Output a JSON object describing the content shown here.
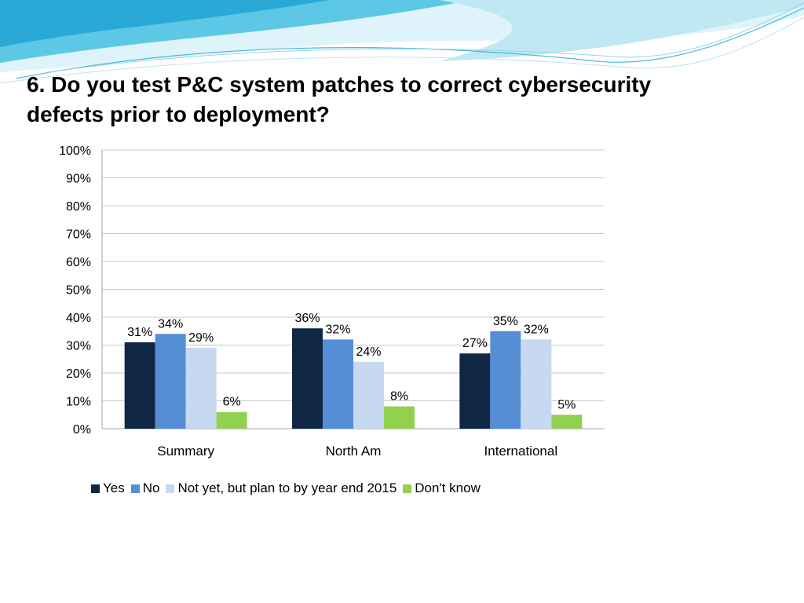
{
  "slide": {
    "title": "6. Do you test P&C system patches to correct cybersecurity defects prior to deployment?"
  },
  "theme": {
    "wave_colors": [
      "#bfe8f3",
      "#5cc8e6",
      "#2aa9d6",
      "#dff4fa"
    ]
  },
  "chart_data": {
    "type": "bar",
    "categories": [
      "Summary",
      "North Am",
      "International"
    ],
    "series": [
      {
        "name": "Yes",
        "color": "#0f2744",
        "values": [
          31,
          36,
          27
        ],
        "labels": [
          "31%",
          "36%",
          "27%"
        ]
      },
      {
        "name": "No",
        "color": "#558ed5",
        "values": [
          34,
          32,
          35
        ],
        "labels": [
          "34%",
          "32%",
          "35%"
        ]
      },
      {
        "name": "Not yet, but plan to by year end 2015",
        "color": "#c6d9f1",
        "values": [
          29,
          24,
          32
        ],
        "labels": [
          "29%",
          "24%",
          "32%"
        ]
      },
      {
        "name": "Don't know",
        "color": "#92d050",
        "values": [
          6,
          8,
          5
        ],
        "labels": [
          "6%",
          "8%",
          "5%"
        ]
      }
    ],
    "yticks": [
      "0%",
      "10%",
      "20%",
      "30%",
      "40%",
      "50%",
      "60%",
      "70%",
      "80%",
      "90%",
      "100%"
    ],
    "ylim": [
      0,
      100
    ],
    "grid": true,
    "legend_position": "bottom",
    "title": "",
    "xlabel": "",
    "ylabel": ""
  }
}
